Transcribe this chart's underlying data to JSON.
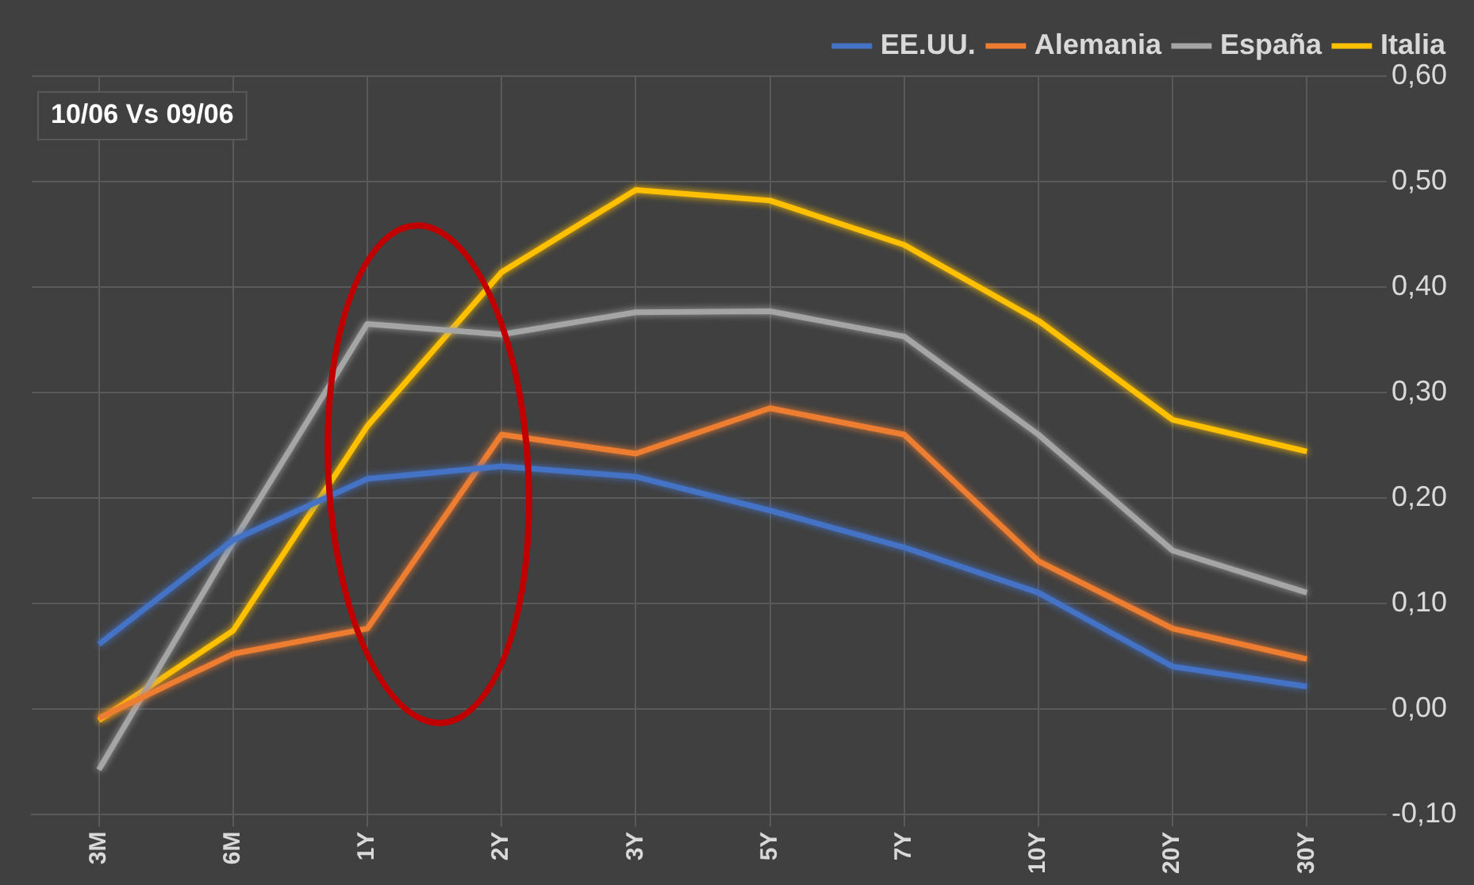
{
  "chart_data": {
    "type": "line",
    "categories": [
      "3M",
      "6M",
      "1Y",
      "2Y",
      "3Y",
      "5Y",
      "7Y",
      "10Y",
      "20Y",
      "30Y"
    ],
    "series": [
      {
        "name": "EE.UU.",
        "color": "#4472c4",
        "values": [
          0.061,
          0.16,
          0.218,
          0.23,
          0.22,
          0.188,
          0.153,
          0.11,
          0.04,
          0.021
        ]
      },
      {
        "name": "Alemania",
        "color": "#ed7d31",
        "values": [
          -0.009,
          0.052,
          0.076,
          0.26,
          0.242,
          0.285,
          0.26,
          0.14,
          0.076,
          0.047
        ]
      },
      {
        "name": "España",
        "color": "#a5a5a5",
        "values": [
          -0.058,
          0.158,
          0.365,
          0.355,
          0.376,
          0.377,
          0.353,
          0.26,
          0.15,
          0.11
        ]
      },
      {
        "name": "Italia",
        "color": "#ffc000",
        "values": [
          -0.011,
          0.074,
          0.268,
          0.414,
          0.492,
          0.482,
          0.44,
          0.368,
          0.274,
          0.244
        ]
      }
    ],
    "ylim": [
      -0.1,
      0.6
    ],
    "yticks": [
      {
        "value": -0.1,
        "label": "-0,10"
      },
      {
        "value": 0,
        "label": "0,00"
      },
      {
        "value": 0.1,
        "label": "0,10"
      },
      {
        "value": 0.2,
        "label": "0,20"
      },
      {
        "value": 0.3,
        "label": "0,30"
      },
      {
        "value": 0.4,
        "label": "0,40"
      },
      {
        "value": 0.5,
        "label": "0,50"
      },
      {
        "value": 0.6,
        "label": "0,60"
      }
    ],
    "annotations": [
      "10/06 Vs 09/06"
    ],
    "grid": true,
    "legend": "top right",
    "marker": "none",
    "line_style": "solid"
  }
}
